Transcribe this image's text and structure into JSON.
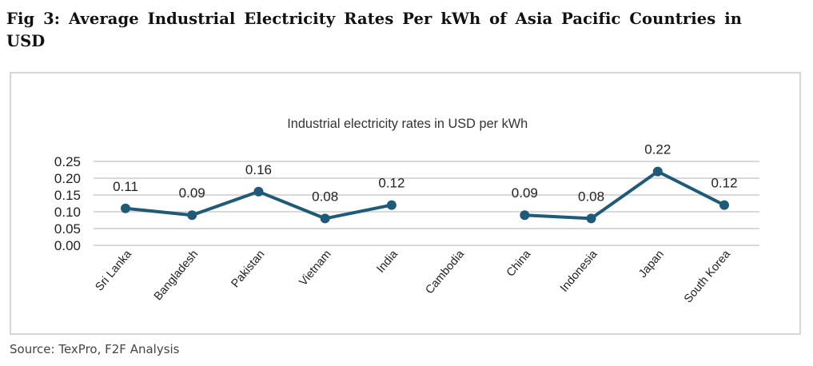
{
  "figure": {
    "title": "Fig 3: Average Industrial Electricity Rates Per kWh of Asia Pacific Countries in USD",
    "source": "Source: TexPro, F2F Analysis"
  },
  "chart_data": {
    "type": "line",
    "title": "Industrial electricity rates in USD per kWh",
    "xlabel": "",
    "ylabel": "",
    "categories": [
      "Sri Lanka",
      "Bangladesh",
      "Pakistan",
      "Vietnam",
      "India",
      "Cambodia",
      "China",
      "Indonesia",
      "Japan",
      "South Korea"
    ],
    "series": [
      {
        "name": "Industrial electricity rate (USD/kWh)",
        "values": [
          0.11,
          0.09,
          0.16,
          0.08,
          0.12,
          null,
          0.09,
          0.08,
          0.22,
          0.12
        ],
        "labels": [
          "0.11",
          "0.09",
          "0.16",
          "0.08",
          "0.12",
          null,
          "0.09",
          "0.08",
          "0.22",
          "0.12"
        ],
        "color": "#1f5a78"
      }
    ],
    "ylim": [
      0,
      0.25
    ],
    "yticks": [
      "0.00",
      "0.05",
      "0.10",
      "0.15",
      "0.20",
      "0.25"
    ],
    "grid": true,
    "legend": "none",
    "gridline_color": "#d9d9d9"
  }
}
